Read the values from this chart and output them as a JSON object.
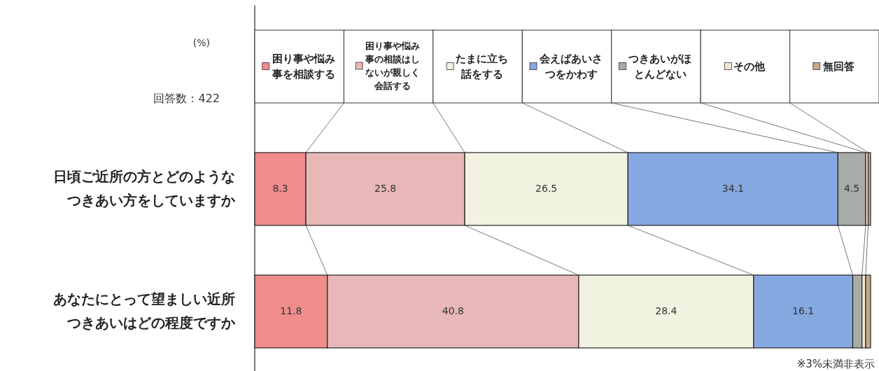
{
  "chart_data": {
    "type": "bar",
    "orientation": "horizontal",
    "stacked": true,
    "legend": "top",
    "xlim": [
      0,
      100
    ],
    "categories": [
      "日頃ご近所の方とどのようなつきあい方をしていますか",
      "あなたにとって望ましい近所つきあいはどの程度ですか"
    ],
    "series": [
      {
        "name": "困り事や悩み事を相談する",
        "color": "#f08c8c",
        "values": [
          8.3,
          11.8
        ],
        "value_labels": [
          "8.3",
          "11.8"
        ]
      },
      {
        "name": "困り事や悩み事の相談はしないが親しく会話する",
        "color": "#e8b8b8",
        "values": [
          25.8,
          40.8
        ],
        "value_labels": [
          "25.8",
          "40.8"
        ]
      },
      {
        "name": "たまに立ち話をする",
        "color": "#f2f2e0",
        "values": [
          26.5,
          28.4
        ],
        "value_labels": [
          "26.5",
          "28.4"
        ]
      },
      {
        "name": "会えばあいさつをかわす",
        "color": "#86a8e0",
        "values": [
          34.1,
          16.1
        ],
        "value_labels": [
          "34.1",
          "16.1"
        ]
      },
      {
        "name": "つきあいがほとんどない",
        "color": "#a8aca8",
        "values": [
          4.5,
          1.5
        ],
        "value_labels": [
          "4.5",
          null
        ]
      },
      {
        "name": "その他",
        "color": "#f5e8d8",
        "values": [
          0.4,
          0.6
        ],
        "value_labels": [
          null,
          null
        ]
      },
      {
        "name": "無回答",
        "color": "#c8a888",
        "values": [
          0.4,
          0.8
        ],
        "value_labels": [
          null,
          null
        ]
      }
    ],
    "annotations": [
      "(%)",
      "回答数：422",
      "※3%未満非表示"
    ]
  }
}
